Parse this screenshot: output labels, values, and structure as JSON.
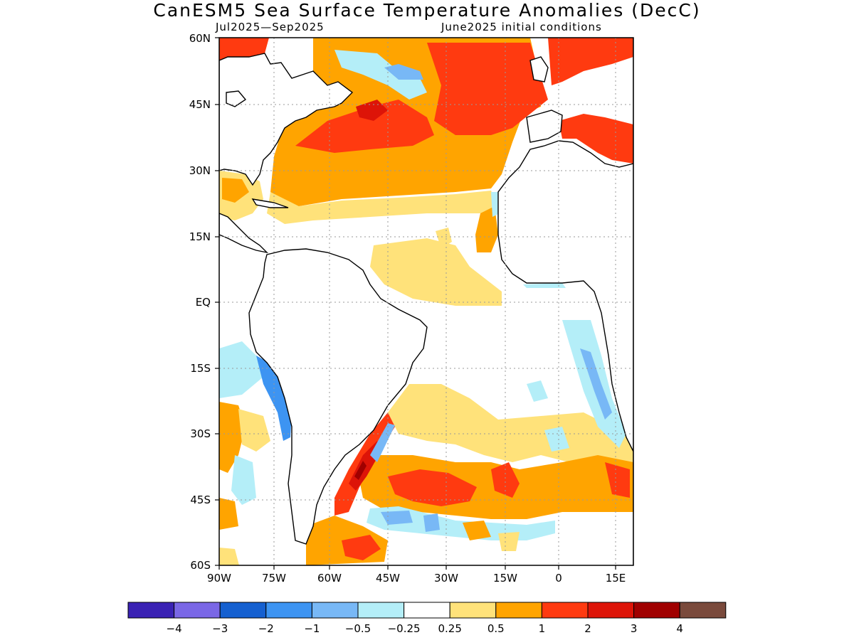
{
  "title": "CanESM5 Sea Surface Temperature Anomalies (DecC)",
  "subtitle_left": "Jul2025—Sep2025",
  "subtitle_right": "June2025 initial conditions",
  "lat_labels": [
    "60N",
    "45N",
    "30N",
    "15N",
    "EQ",
    "15S",
    "30S",
    "45S",
    "60S"
  ],
  "lon_labels": [
    "90W",
    "75W",
    "60W",
    "45W",
    "30W",
    "15W",
    "0",
    "15E"
  ],
  "legend": {
    "colors": [
      "#3a22b4",
      "#7a67e6",
      "#1560d0",
      "#3d94f2",
      "#78b8f6",
      "#b4eef8",
      "#ffffff",
      "#ffe27a",
      "#ffa400",
      "#ff3a10",
      "#dd1408",
      "#a00000",
      "#7a4a3c"
    ],
    "labels": [
      "−4",
      "−3",
      "−2",
      "−1",
      "−0.5",
      "−0.25",
      "0.25",
      "0.5",
      "1",
      "2",
      "3",
      "4"
    ]
  },
  "regions": {
    "n_atlantic_warm": "#ffa400",
    "n_atlantic_hot": "#ff3a10",
    "tropical_weak": "#ffe27a",
    "cool_weak": "#b4eef8",
    "cool": "#78b8f6",
    "cool_strong": "#3d94f2",
    "very_hot": "#dd1408",
    "extreme": "#a00000"
  }
}
